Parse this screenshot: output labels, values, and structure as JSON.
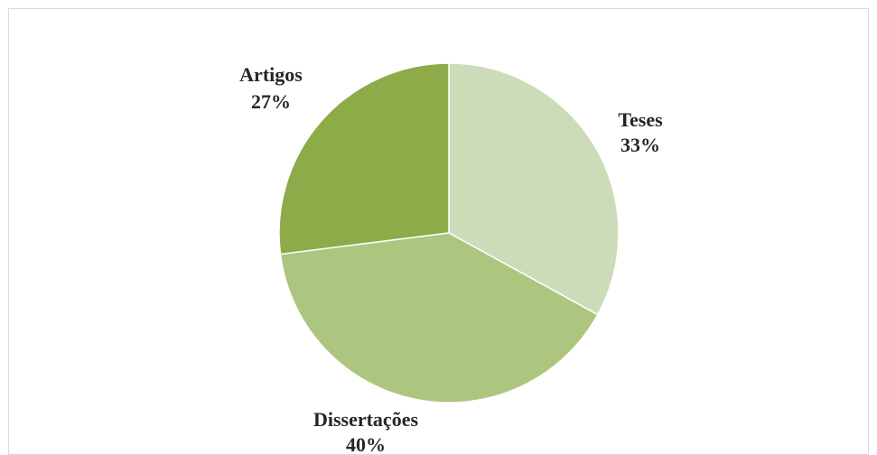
{
  "chart_data": {
    "type": "pie",
    "title": "",
    "categories": [
      "Teses",
      "Dissertações",
      "Artigos"
    ],
    "values": [
      33,
      40,
      27
    ],
    "labels": [
      "33%",
      "40%",
      "27%"
    ],
    "colors": [
      "#ccdcb8",
      "#adc67f",
      "#8dab48"
    ],
    "legend": "none",
    "start_angle": "12 o'clock, clockwise"
  }
}
